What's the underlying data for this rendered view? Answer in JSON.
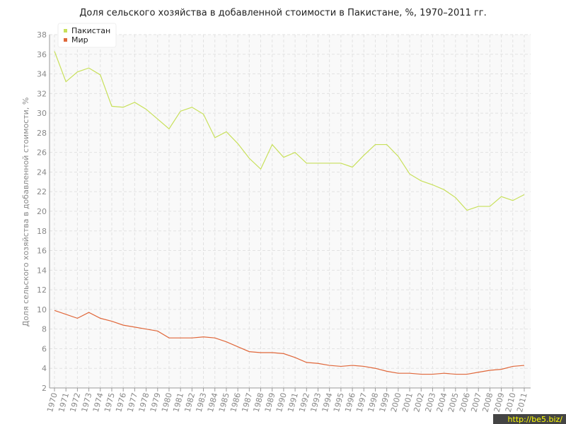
{
  "chart_data": {
    "type": "line",
    "title": "Доля сельского хозяйства в добавленной стоимости в Пакистане, %, 1970–2011 гг.",
    "y_label": "Доля сельского хозяйства в добавленной стоимости, %",
    "watermark": "http://be5.biz/",
    "categories": [
      "1970",
      "1971",
      "1972",
      "1973",
      "1974",
      "1975",
      "1976",
      "1977",
      "1978",
      "1979",
      "1980",
      "1981",
      "1982",
      "1983",
      "1984",
      "1985",
      "1986",
      "1987",
      "1988",
      "1989",
      "1990",
      "1991",
      "1992",
      "1993",
      "1994",
      "1995",
      "1996",
      "1997",
      "1998",
      "1999",
      "2000",
      "2001",
      "2002",
      "2003",
      "2004",
      "2005",
      "2006",
      "2007",
      "2008",
      "2009",
      "2010",
      "2011"
    ],
    "series": [
      {
        "name": "Пакистан",
        "color": "#c8e05a",
        "values": [
          36.3,
          33.2,
          34.2,
          34.6,
          33.9,
          30.7,
          30.6,
          31.1,
          30.4,
          29.4,
          28.4,
          30.2,
          30.6,
          29.9,
          27.5,
          28.1,
          26.9,
          25.4,
          24.3,
          26.8,
          25.5,
          26.0,
          24.9,
          24.9,
          24.9,
          24.9,
          24.5,
          25.7,
          26.8,
          26.8,
          25.6,
          23.8,
          23.1,
          22.7,
          22.2,
          21.4,
          20.1,
          20.5,
          20.5,
          21.5,
          21.1,
          21.7
        ]
      },
      {
        "name": "Мир",
        "color": "#e0673a",
        "values": [
          9.9,
          9.5,
          9.1,
          9.7,
          9.1,
          8.8,
          8.4,
          8.2,
          8.0,
          7.8,
          7.1,
          7.1,
          7.1,
          7.2,
          7.1,
          6.7,
          6.2,
          5.7,
          5.6,
          5.6,
          5.5,
          5.1,
          4.6,
          4.5,
          4.3,
          4.2,
          4.3,
          4.2,
          4.0,
          3.7,
          3.5,
          3.5,
          3.4,
          3.4,
          3.5,
          3.4,
          3.4,
          3.6,
          3.8,
          3.9,
          4.2,
          4.3
        ]
      }
    ],
    "ylim": [
      2,
      38
    ],
    "yticks": [
      2,
      4,
      6,
      8,
      10,
      12,
      14,
      16,
      18,
      20,
      22,
      24,
      26,
      28,
      30,
      32,
      34,
      36,
      38
    ],
    "grid": true,
    "legend": "top-left"
  }
}
